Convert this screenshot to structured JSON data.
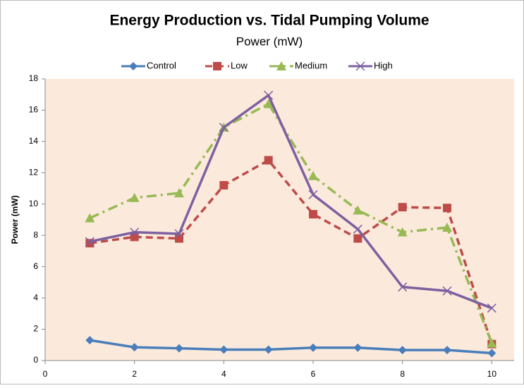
{
  "chart_data": {
    "type": "line",
    "title": "Energy Production vs. Tidal Pumping Volume",
    "subtitle": "Power (mW)",
    "y_label": "Power (mW)",
    "x": [
      1,
      2,
      3,
      4,
      5,
      6,
      7,
      8,
      9,
      10
    ],
    "series": [
      {
        "name": "Control",
        "color": "#4a7ebb",
        "marker": "diamond",
        "dash": "solid",
        "values": [
          1.3,
          0.85,
          0.78,
          0.7,
          0.7,
          0.82,
          0.82,
          0.67,
          0.67,
          0.47
        ]
      },
      {
        "name": "Low",
        "color": "#be4b48",
        "marker": "square",
        "dash": "dash",
        "values": [
          7.5,
          7.9,
          7.8,
          11.2,
          12.8,
          9.35,
          7.8,
          9.8,
          9.75,
          1.05
        ]
      },
      {
        "name": "Medium",
        "color": "#98b954",
        "marker": "triangle",
        "dash": "dashdot",
        "values": [
          9.1,
          10.4,
          10.7,
          14.9,
          16.4,
          11.8,
          9.6,
          8.2,
          8.5,
          1.1
        ]
      },
      {
        "name": "High",
        "color": "#7d60a0",
        "marker": "x",
        "dash": "solid",
        "values": [
          7.6,
          8.2,
          8.1,
          14.9,
          16.95,
          10.6,
          8.4,
          4.7,
          4.45,
          3.35
        ]
      }
    ],
    "xlim": [
      0,
      10.5
    ],
    "xticks": [
      0,
      2,
      4,
      6,
      8,
      10
    ],
    "ylim": [
      0,
      18
    ],
    "yticks": [
      0,
      2,
      4,
      6,
      8,
      10,
      12,
      14,
      16,
      18
    ],
    "grid": false,
    "legend": "top"
  }
}
